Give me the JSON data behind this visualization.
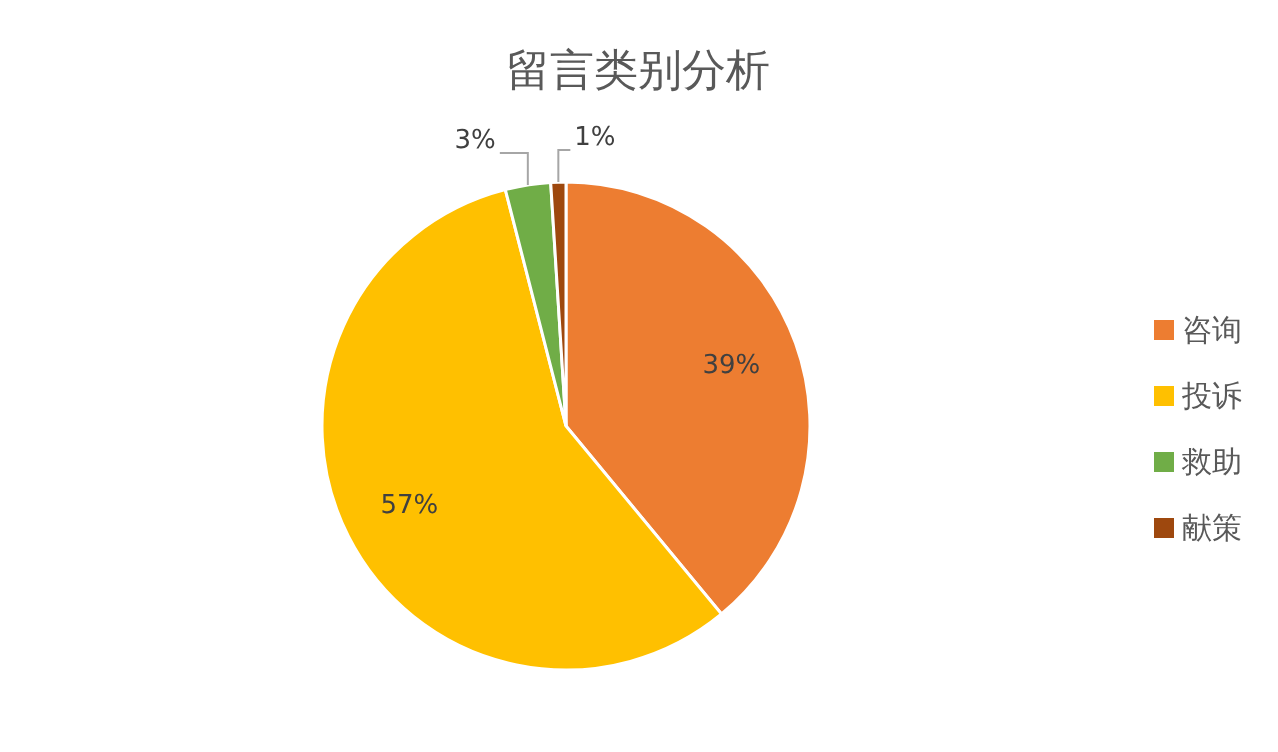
{
  "chart_data": {
    "type": "pie",
    "title": "留言类别分析",
    "categories": [
      "咨询",
      "投诉",
      "救助",
      "献策"
    ],
    "values": [
      39,
      57,
      3,
      1
    ],
    "colors": [
      "#ed7d31",
      "#ffc000",
      "#70ad47",
      "#9e480e"
    ],
    "value_labels": [
      "39%",
      "57%",
      "3%",
      "1%"
    ],
    "legend": "right"
  }
}
